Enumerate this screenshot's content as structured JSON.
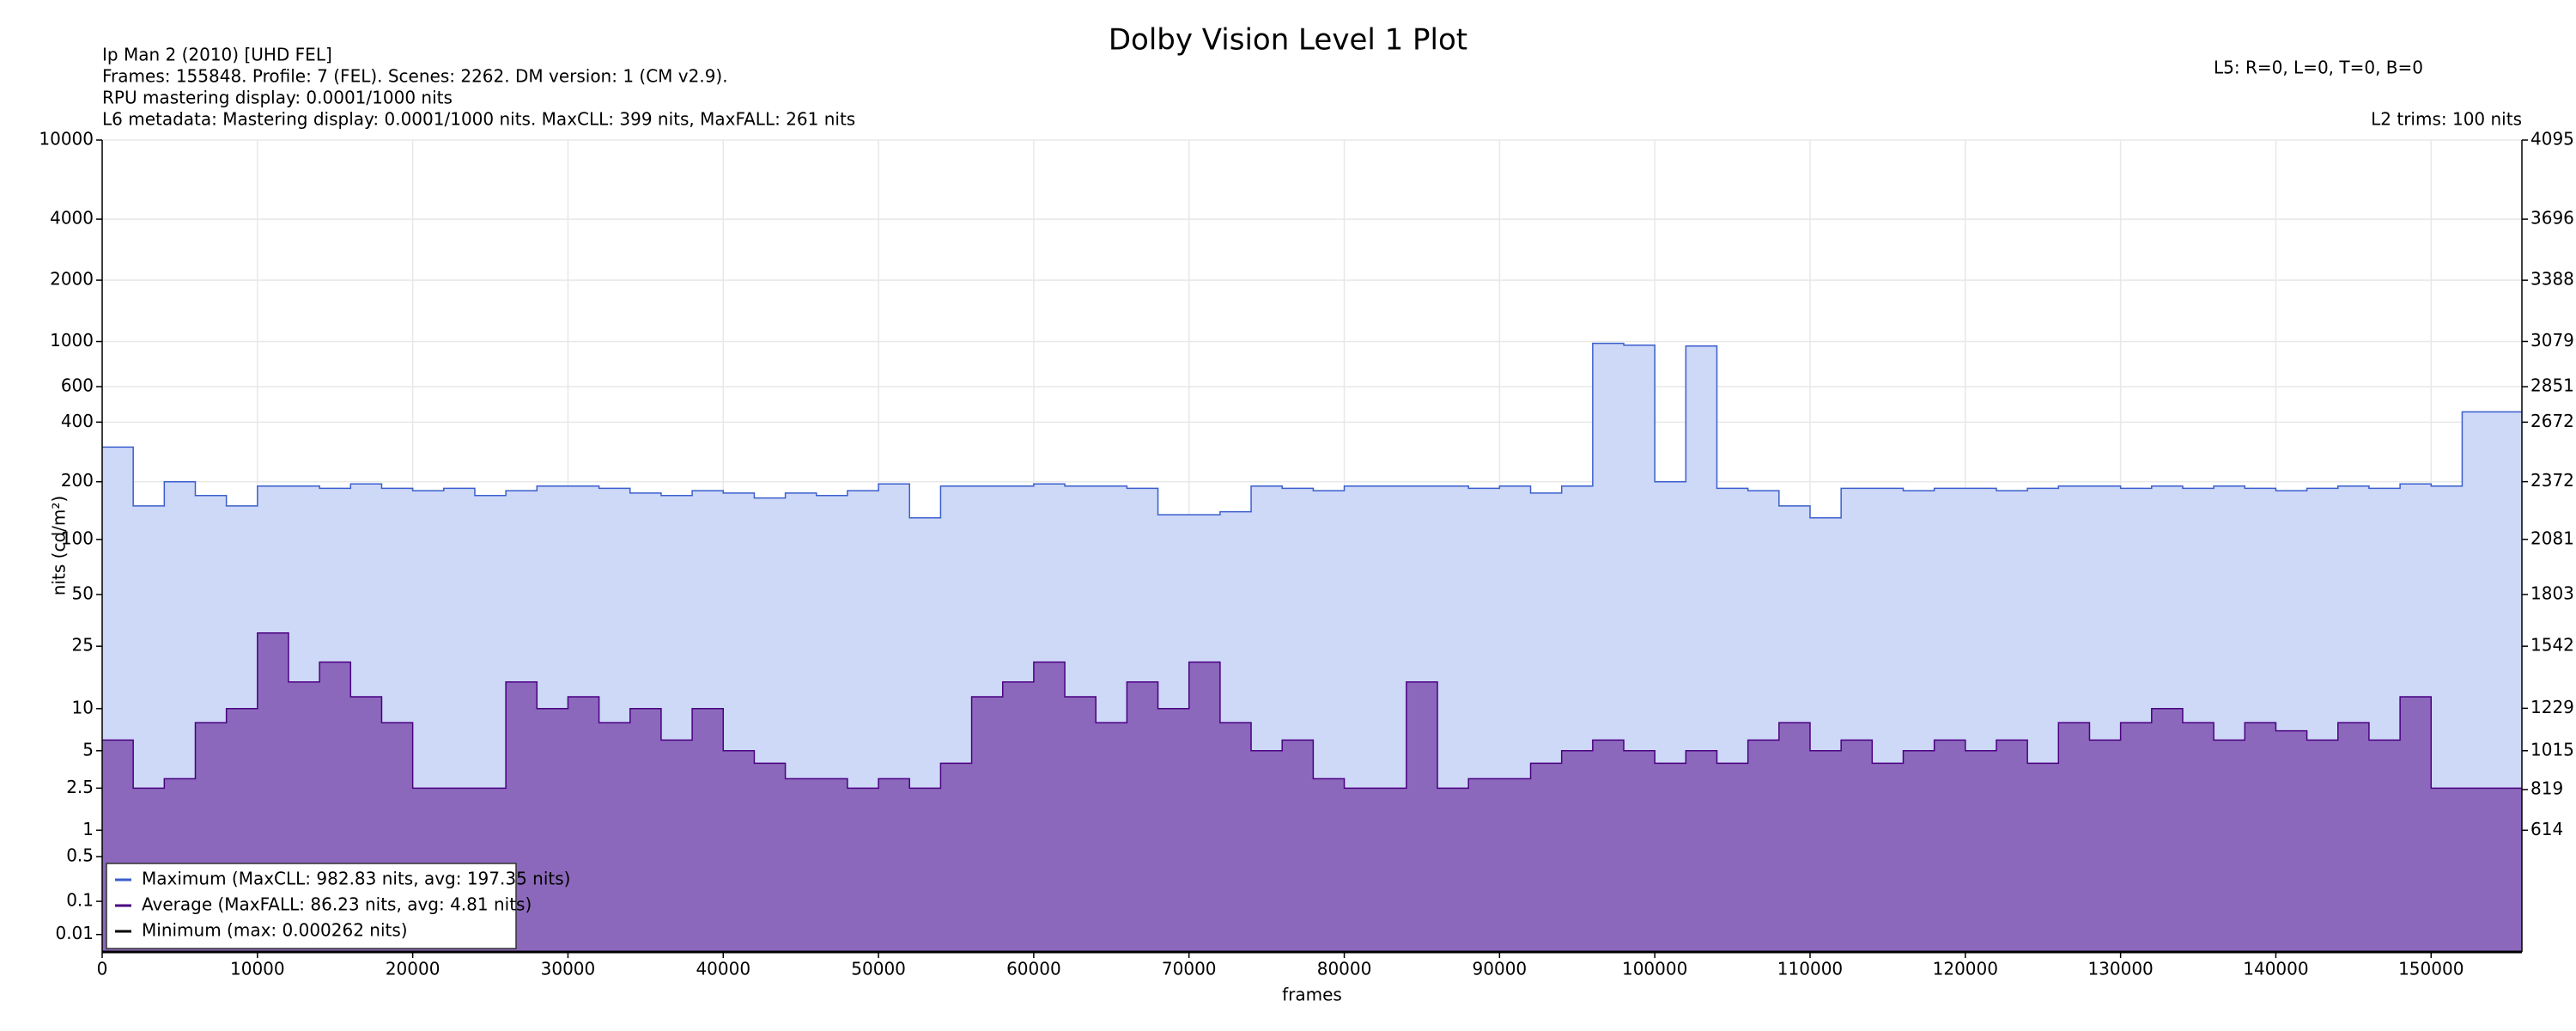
{
  "chart_data": {
    "type": "step-area",
    "title": "Dolby Vision Level 1 Plot",
    "info": [
      "Ip Man 2 (2010) [UHD FEL]",
      "Frames: 155848. Profile: 7 (FEL). Scenes: 2262. DM version: 1 (CM v2.9).",
      "RPU mastering display: 0.0001/1000 nits",
      "L6 metadata: Mastering display: 0.0001/1000 nits. MaxCLL: 399 nits, MaxFALL: 261 nits"
    ],
    "l5_label": "L5: R=0, L=0, T=0, B=0",
    "l2_label": "L2 trims: 100 nits",
    "x_label": "frames",
    "y_label": "nits (cd/m²)",
    "yscale": "pq",
    "grid": true,
    "legend": "lower left",
    "xlim": [
      0,
      155848
    ],
    "xticks": [
      0,
      10000,
      20000,
      30000,
      40000,
      50000,
      60000,
      70000,
      80000,
      90000,
      100000,
      110000,
      120000,
      130000,
      140000,
      150000
    ],
    "ylim": [
      0,
      10000
    ],
    "yticks": [
      0.01,
      0.1,
      0.5,
      1,
      2.5,
      5,
      10,
      25,
      50,
      100,
      200,
      400,
      600,
      1000,
      2000,
      4000,
      10000
    ],
    "y2lim": [
      0,
      4095
    ],
    "y2ticks": [
      614,
      819,
      1015,
      1229,
      1542,
      1803,
      2081,
      2372,
      2672,
      2851,
      3079,
      3388,
      3696,
      4095
    ],
    "x": [
      0,
      2000,
      4000,
      6000,
      8000,
      10000,
      12000,
      14000,
      16000,
      18000,
      20000,
      22000,
      24000,
      26000,
      28000,
      30000,
      32000,
      34000,
      36000,
      38000,
      40000,
      42000,
      44000,
      46000,
      48000,
      50000,
      52000,
      54000,
      56000,
      58000,
      60000,
      62000,
      64000,
      66000,
      68000,
      70000,
      72000,
      74000,
      76000,
      78000,
      80000,
      82000,
      84000,
      86000,
      88000,
      90000,
      92000,
      94000,
      96000,
      98000,
      100000,
      102000,
      104000,
      106000,
      108000,
      110000,
      112000,
      114000,
      116000,
      118000,
      120000,
      122000,
      124000,
      126000,
      128000,
      130000,
      132000,
      134000,
      136000,
      138000,
      140000,
      142000,
      144000,
      146000,
      148000,
      150000,
      152000,
      154000,
      155848
    ],
    "series": [
      {
        "name": "Maximum (MaxCLL: 982.83 nits, avg: 197.35 nits)",
        "color": "#3a5fcd",
        "fill": "#ced8f7",
        "values": [
          300,
          150,
          200,
          170,
          150,
          190,
          190,
          185,
          195,
          185,
          180,
          185,
          170,
          180,
          190,
          190,
          185,
          175,
          170,
          180,
          175,
          165,
          175,
          170,
          180,
          195,
          130,
          190,
          190,
          190,
          195,
          190,
          190,
          185,
          135,
          135,
          140,
          190,
          185,
          180,
          190,
          190,
          190,
          190,
          185,
          190,
          175,
          190,
          980,
          960,
          200,
          950,
          185,
          180,
          150,
          130,
          185,
          185,
          180,
          185,
          185,
          180,
          185,
          190,
          190,
          185,
          190,
          185,
          190,
          185,
          180,
          185,
          190,
          185,
          195,
          190,
          450,
          450,
          450
        ]
      },
      {
        "name": "Average (MaxFALL: 86.23 nits, avg: 4.81 nits)",
        "color": "#4b0082",
        "fill": "#8b68bb",
        "values": [
          6,
          2.5,
          3,
          8,
          10,
          30,
          15,
          20,
          12,
          8,
          2.5,
          2.5,
          2.5,
          15,
          10,
          12,
          8,
          10,
          6,
          10,
          5,
          4,
          3,
          3,
          2.5,
          3,
          2.5,
          4,
          12,
          15,
          20,
          12,
          8,
          15,
          10,
          20,
          8,
          5,
          6,
          3,
          2.5,
          2.5,
          15,
          2.5,
          3,
          3,
          4,
          5,
          6,
          5,
          4,
          5,
          4,
          6,
          8,
          5,
          6,
          4,
          5,
          6,
          5,
          6,
          4,
          8,
          6,
          8,
          10,
          8,
          6,
          8,
          7,
          6,
          8,
          6,
          12,
          2.5,
          2.5,
          2.5,
          2.5
        ]
      },
      {
        "name": "Minimum (max: 0.000262 nits)",
        "color": "#000000",
        "values": [
          0,
          0,
          0,
          0,
          0,
          0,
          0,
          0,
          0,
          0,
          0,
          0,
          0,
          0,
          0,
          0,
          0,
          0,
          0,
          0,
          0,
          0,
          0,
          0,
          0,
          0,
          0,
          0,
          0,
          0,
          0,
          0,
          0,
          0,
          0,
          0,
          0,
          0,
          0,
          0,
          0,
          0,
          0,
          0,
          0,
          0,
          0,
          0,
          0,
          0,
          0,
          0,
          0,
          0,
          0,
          0,
          0,
          0,
          0,
          0,
          0,
          0,
          0,
          0,
          0,
          0,
          0,
          0,
          0,
          0,
          0,
          0,
          0,
          0,
          0,
          0,
          0,
          0,
          0
        ]
      }
    ]
  }
}
